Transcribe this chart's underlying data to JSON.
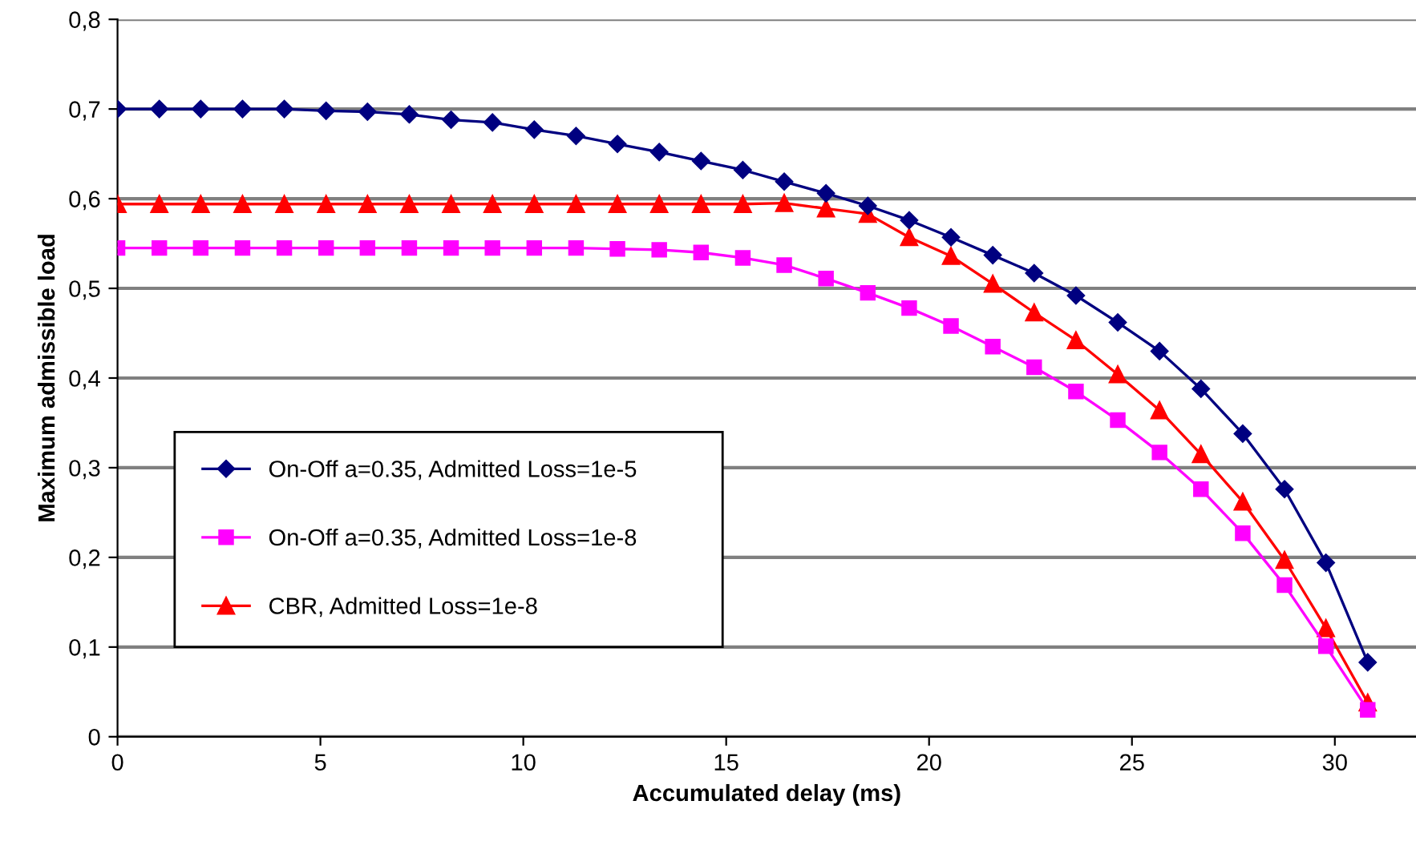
{
  "chart_data": {
    "type": "line",
    "xlabel": "Accumulated delay (ms)",
    "ylabel": "Maximum admissible load",
    "x": [
      0,
      1.03,
      2.05,
      3.08,
      4.11,
      5.14,
      6.16,
      7.19,
      8.22,
      9.24,
      10.27,
      11.3,
      12.32,
      13.35,
      14.38,
      15.41,
      16.43,
      17.46,
      18.49,
      19.51,
      20.54,
      21.57,
      22.59,
      23.62,
      24.65,
      25.68,
      26.7,
      27.73,
      28.76,
      29.78,
      30.81
    ],
    "series": [
      {
        "name": "On-Off a=0.35, Admitted Loss=1e-5",
        "color": "#000080",
        "marker": "diamond",
        "values": [
          0.7,
          0.7,
          0.7,
          0.7,
          0.7,
          0.698,
          0.697,
          0.694,
          0.688,
          0.685,
          0.677,
          0.67,
          0.661,
          0.652,
          0.642,
          0.632,
          0.619,
          0.606,
          0.592,
          0.576,
          0.557,
          0.537,
          0.517,
          0.492,
          0.462,
          0.43,
          0.388,
          0.338,
          0.276,
          0.194,
          0.083
        ]
      },
      {
        "name": "On-Off a=0.35, Admitted Loss=1e-8",
        "color": "#ff00ff",
        "marker": "square",
        "values": [
          0.545,
          0.545,
          0.545,
          0.545,
          0.545,
          0.545,
          0.545,
          0.545,
          0.545,
          0.545,
          0.545,
          0.545,
          0.544,
          0.543,
          0.54,
          0.534,
          0.526,
          0.511,
          0.495,
          0.478,
          0.458,
          0.435,
          0.412,
          0.385,
          0.353,
          0.317,
          0.276,
          0.227,
          0.169,
          0.101,
          0.03
        ]
      },
      {
        "name": "CBR, Admitted Loss=1e-8",
        "color": "#ff0000",
        "marker": "triangle",
        "values": [
          0.594,
          0.594,
          0.594,
          0.594,
          0.594,
          0.594,
          0.594,
          0.594,
          0.594,
          0.594,
          0.594,
          0.594,
          0.594,
          0.594,
          0.594,
          0.594,
          0.595,
          0.589,
          0.583,
          0.557,
          0.536,
          0.505,
          0.473,
          0.442,
          0.404,
          0.364,
          0.315,
          0.262,
          0.197,
          0.121,
          0.038
        ]
      }
    ],
    "xlim": [
      0,
      32
    ],
    "xticks": [
      0,
      5,
      10,
      15,
      20,
      25,
      30
    ],
    "ylim": [
      0,
      0.8
    ],
    "yticks": [
      0,
      {
        "value": 0.1,
        "label": "0,1"
      },
      {
        "value": 0.2,
        "label": "0,2"
      },
      {
        "value": 0.3,
        "label": "0,3"
      },
      {
        "value": 0.4,
        "label": "0,4"
      },
      {
        "value": 0.5,
        "label": "0,5"
      },
      {
        "value": 0.6,
        "label": "0,6"
      },
      {
        "value": 0.7,
        "label": "0,7"
      },
      {
        "value": 0.8,
        "label": "0,8"
      }
    ],
    "grid": "y",
    "legend": "bottom left",
    "line_style": "solid"
  }
}
